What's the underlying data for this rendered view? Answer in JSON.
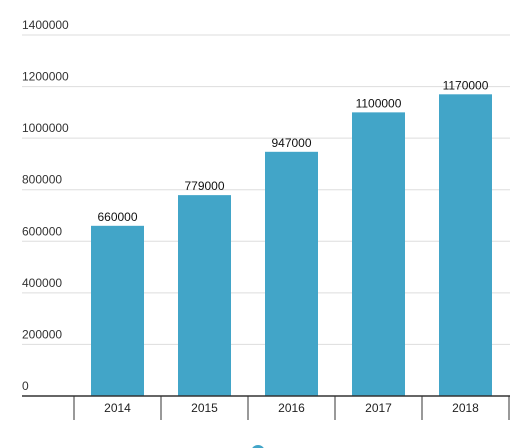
{
  "chart_data": {
    "type": "bar",
    "categories": [
      "2014",
      "2015",
      "2016",
      "2017",
      "2018"
    ],
    "series": [
      {
        "values": [
          660000,
          779000,
          947000,
          1100000,
          1170000
        ],
        "color": "#42a5c8"
      }
    ],
    "data_labels": [
      "660000",
      "779000",
      "947000",
      "1100000",
      "1170000"
    ],
    "y_ticks": [
      0,
      200000,
      400000,
      600000,
      800000,
      1000000,
      1200000,
      1400000
    ],
    "ylim": [
      0,
      1400000
    ],
    "grid": true,
    "legend": "bottom",
    "colors": {
      "bar": "#42a5c8",
      "grid": "#dddddd",
      "axis": "#333333",
      "legend_marker": "#42a5c8"
    }
  }
}
